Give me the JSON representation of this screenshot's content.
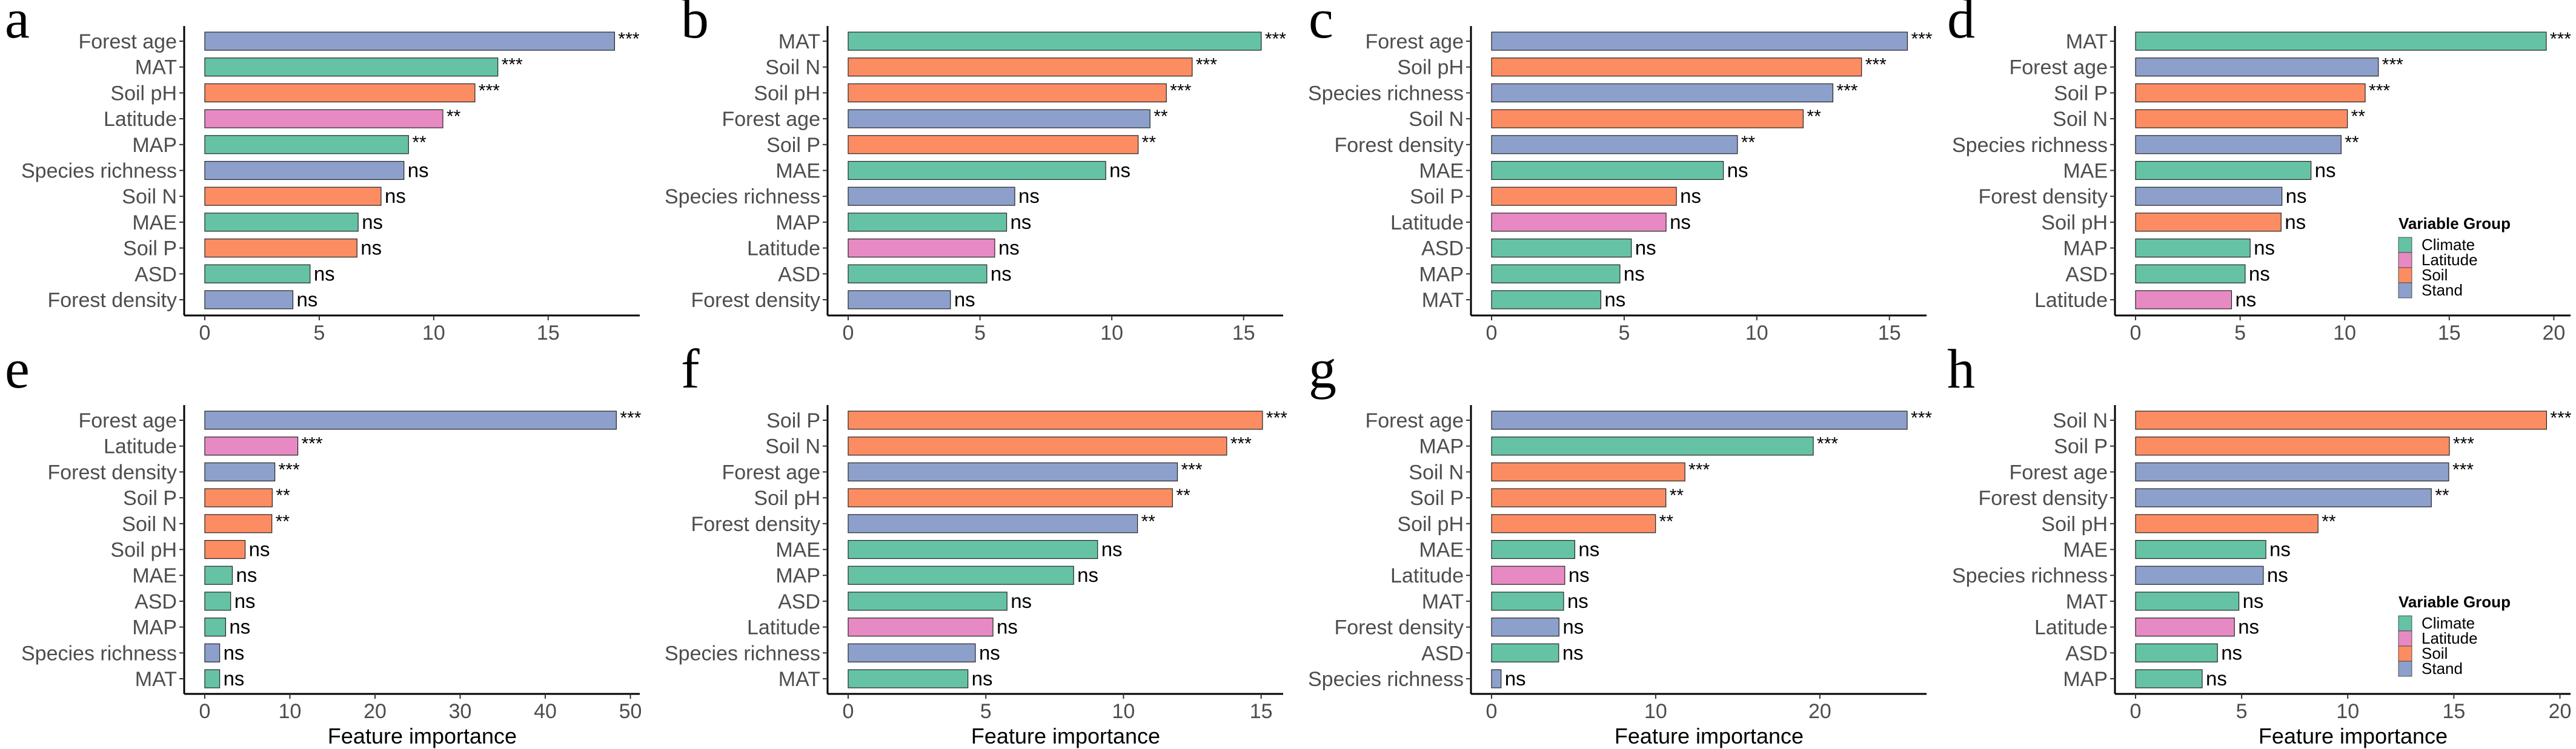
{
  "legend": {
    "title": "Variable Group",
    "items": [
      {
        "label": "Climate",
        "color": "#66c2a5"
      },
      {
        "label": "Latitude",
        "color": "#e78ac3"
      },
      {
        "label": "Soil",
        "color": "#fc8d62"
      },
      {
        "label": "Stand",
        "color": "#8da0cb"
      }
    ]
  },
  "chart_data": [
    {
      "type": "bar",
      "orientation": "horizontal",
      "panel": "a",
      "xlabel": "",
      "xlim": [
        0,
        19
      ],
      "ticks": [
        "0",
        "5",
        "10",
        "15"
      ],
      "legend": false,
      "bars": [
        {
          "variable": "Forest age",
          "group": "Stand",
          "importance": 17.9,
          "significance": "***"
        },
        {
          "variable": "MAT",
          "group": "Climate",
          "importance": 12.8,
          "significance": "***"
        },
        {
          "variable": "Soil pH",
          "group": "Soil",
          "importance": 11.8,
          "significance": "***"
        },
        {
          "variable": "Latitude",
          "group": "Latitude",
          "importance": 10.4,
          "significance": "**"
        },
        {
          "variable": "MAP",
          "group": "Climate",
          "importance": 8.9,
          "significance": "**"
        },
        {
          "variable": "Species richness",
          "group": "Stand",
          "importance": 8.7,
          "significance": "ns"
        },
        {
          "variable": "Soil N",
          "group": "Soil",
          "importance": 7.7,
          "significance": "ns"
        },
        {
          "variable": "MAE",
          "group": "Climate",
          "importance": 6.7,
          "significance": "ns"
        },
        {
          "variable": "Soil P",
          "group": "Soil",
          "importance": 6.65,
          "significance": "ns"
        },
        {
          "variable": "ASD",
          "group": "Climate",
          "importance": 4.6,
          "significance": "ns"
        },
        {
          "variable": "Forest density",
          "group": "Stand",
          "importance": 3.85,
          "significance": "ns"
        }
      ]
    },
    {
      "type": "bar",
      "orientation": "horizontal",
      "panel": "b",
      "xlabel": "",
      "xlim": [
        0,
        16.5
      ],
      "ticks": [
        "0",
        "5",
        "10",
        "15"
      ],
      "legend": false,
      "bars": [
        {
          "variable": "MAT",
          "group": "Climate",
          "importance": 15.67,
          "significance": "***"
        },
        {
          "variable": "Soil N",
          "group": "Soil",
          "importance": 13.05,
          "significance": "***"
        },
        {
          "variable": "Soil pH",
          "group": "Soil",
          "importance": 12.07,
          "significance": "***"
        },
        {
          "variable": "Forest age",
          "group": "Stand",
          "importance": 11.45,
          "significance": "**"
        },
        {
          "variable": "Soil P",
          "group": "Soil",
          "importance": 11.0,
          "significance": "**"
        },
        {
          "variable": "MAE",
          "group": "Climate",
          "importance": 9.77,
          "significance": "ns"
        },
        {
          "variable": "Species richness",
          "group": "Stand",
          "importance": 6.32,
          "significance": "ns"
        },
        {
          "variable": "MAP",
          "group": "Climate",
          "importance": 6.01,
          "significance": "ns"
        },
        {
          "variable": "Latitude",
          "group": "Latitude",
          "importance": 5.56,
          "significance": "ns"
        },
        {
          "variable": "ASD",
          "group": "Climate",
          "importance": 5.26,
          "significance": "ns"
        },
        {
          "variable": "Forest density",
          "group": "Stand",
          "importance": 3.88,
          "significance": "ns"
        }
      ]
    },
    {
      "type": "bar",
      "orientation": "horizontal",
      "panel": "c",
      "xlabel": "",
      "xlim": [
        0,
        16.4
      ],
      "ticks": [
        "0",
        "5",
        "10",
        "15"
      ],
      "legend": false,
      "bars": [
        {
          "variable": "Forest age",
          "group": "Stand",
          "importance": 15.68,
          "significance": "***"
        },
        {
          "variable": "Soil pH",
          "group": "Soil",
          "importance": 13.95,
          "significance": "***"
        },
        {
          "variable": "Species richness",
          "group": "Stand",
          "importance": 12.87,
          "significance": "***"
        },
        {
          "variable": "Soil N",
          "group": "Soil",
          "importance": 11.75,
          "significance": "**"
        },
        {
          "variable": "Forest density",
          "group": "Stand",
          "importance": 9.27,
          "significance": "**"
        },
        {
          "variable": "MAE",
          "group": "Climate",
          "importance": 8.74,
          "significance": "ns"
        },
        {
          "variable": "Soil P",
          "group": "Soil",
          "importance": 6.97,
          "significance": "ns"
        },
        {
          "variable": "Latitude",
          "group": "Latitude",
          "importance": 6.58,
          "significance": "ns"
        },
        {
          "variable": "ASD",
          "group": "Climate",
          "importance": 5.27,
          "significance": "ns"
        },
        {
          "variable": "MAP",
          "group": "Climate",
          "importance": 4.84,
          "significance": "ns"
        },
        {
          "variable": "MAT",
          "group": "Climate",
          "importance": 4.12,
          "significance": "ns"
        }
      ]
    },
    {
      "type": "bar",
      "orientation": "horizontal",
      "panel": "d",
      "xlabel": "",
      "xlim": [
        0,
        20.8
      ],
      "ticks": [
        "0",
        "5",
        "10",
        "15",
        "20"
      ],
      "legend": true,
      "bars": [
        {
          "variable": "MAT",
          "group": "Climate",
          "importance": 19.64,
          "significance": "***"
        },
        {
          "variable": "Forest age",
          "group": "Stand",
          "importance": 11.61,
          "significance": "***"
        },
        {
          "variable": "Soil P",
          "group": "Soil",
          "importance": 10.98,
          "significance": "***"
        },
        {
          "variable": "Soil N",
          "group": "Soil",
          "importance": 10.13,
          "significance": "**"
        },
        {
          "variable": "Species richness",
          "group": "Stand",
          "importance": 9.83,
          "significance": "**"
        },
        {
          "variable": "MAE",
          "group": "Climate",
          "importance": 8.39,
          "significance": "ns"
        },
        {
          "variable": "Forest density",
          "group": "Stand",
          "importance": 7.0,
          "significance": "ns"
        },
        {
          "variable": "Soil pH",
          "group": "Soil",
          "importance": 6.96,
          "significance": "ns"
        },
        {
          "variable": "MAP",
          "group": "Climate",
          "importance": 5.48,
          "significance": "ns"
        },
        {
          "variable": "ASD",
          "group": "Climate",
          "importance": 5.24,
          "significance": "ns"
        },
        {
          "variable": "Latitude",
          "group": "Latitude",
          "importance": 4.59,
          "significance": "ns"
        }
      ]
    },
    {
      "type": "bar",
      "orientation": "horizontal",
      "panel": "e",
      "xlabel": "Feature importance",
      "xlim": [
        0,
        51.1
      ],
      "ticks": [
        "0",
        "10",
        "20",
        "30",
        "40",
        "50"
      ],
      "legend": false,
      "bars": [
        {
          "variable": "Forest age",
          "group": "Stand",
          "importance": 48.35,
          "significance": "***"
        },
        {
          "variable": "Latitude",
          "group": "Latitude",
          "importance": 10.93,
          "significance": "***"
        },
        {
          "variable": "Forest density",
          "group": "Stand",
          "importance": 8.23,
          "significance": "***"
        },
        {
          "variable": "Soil P",
          "group": "Soil",
          "importance": 7.93,
          "significance": "**"
        },
        {
          "variable": "Soil N",
          "group": "Soil",
          "importance": 7.88,
          "significance": "**"
        },
        {
          "variable": "Soil pH",
          "group": "Soil",
          "importance": 4.74,
          "significance": "ns"
        },
        {
          "variable": "MAE",
          "group": "Climate",
          "importance": 3.24,
          "significance": "ns"
        },
        {
          "variable": "ASD",
          "group": "Climate",
          "importance": 3.04,
          "significance": "ns"
        },
        {
          "variable": "MAP",
          "group": "Climate",
          "importance": 2.45,
          "significance": "ns"
        },
        {
          "variable": "Species richness",
          "group": "Stand",
          "importance": 1.75,
          "significance": "ns"
        },
        {
          "variable": "MAT",
          "group": "Climate",
          "importance": 1.75,
          "significance": "ns"
        }
      ]
    },
    {
      "type": "bar",
      "orientation": "horizontal",
      "panel": "f",
      "xlabel": "Feature importance",
      "xlim": [
        0,
        15.8
      ],
      "ticks": [
        "0",
        "5",
        "10",
        "15"
      ],
      "legend": false,
      "bars": [
        {
          "variable": "Soil P",
          "group": "Soil",
          "importance": 15.05,
          "significance": "***"
        },
        {
          "variable": "Soil N",
          "group": "Soil",
          "importance": 13.75,
          "significance": "***"
        },
        {
          "variable": "Forest age",
          "group": "Stand",
          "importance": 11.96,
          "significance": "***"
        },
        {
          "variable": "Soil pH",
          "group": "Soil",
          "importance": 11.78,
          "significance": "**"
        },
        {
          "variable": "Forest density",
          "group": "Stand",
          "importance": 10.51,
          "significance": "**"
        },
        {
          "variable": "MAE",
          "group": "Climate",
          "importance": 9.06,
          "significance": "ns"
        },
        {
          "variable": "MAP",
          "group": "Climate",
          "importance": 8.19,
          "significance": "ns"
        },
        {
          "variable": "ASD",
          "group": "Climate",
          "importance": 5.77,
          "significance": "ns"
        },
        {
          "variable": "Latitude",
          "group": "Latitude",
          "importance": 5.26,
          "significance": "ns"
        },
        {
          "variable": "Species richness",
          "group": "Stand",
          "importance": 4.62,
          "significance": "ns"
        },
        {
          "variable": "MAT",
          "group": "Climate",
          "importance": 4.35,
          "significance": "ns"
        }
      ]
    },
    {
      "type": "bar",
      "orientation": "horizontal",
      "panel": "g",
      "xlabel": "Feature importance",
      "xlim": [
        0,
        26.5
      ],
      "ticks": [
        "0",
        "10",
        "20"
      ],
      "legend": false,
      "bars": [
        {
          "variable": "Forest age",
          "group": "Stand",
          "importance": 25.32,
          "significance": "***"
        },
        {
          "variable": "MAP",
          "group": "Climate",
          "importance": 19.6,
          "significance": "***"
        },
        {
          "variable": "Soil N",
          "group": "Soil",
          "importance": 11.78,
          "significance": "***"
        },
        {
          "variable": "Soil P",
          "group": "Soil",
          "importance": 10.62,
          "significance": "**"
        },
        {
          "variable": "Soil pH",
          "group": "Soil",
          "importance": 9.99,
          "significance": "**"
        },
        {
          "variable": "MAE",
          "group": "Climate",
          "importance": 5.07,
          "significance": "ns"
        },
        {
          "variable": "Latitude",
          "group": "Latitude",
          "importance": 4.46,
          "significance": "ns"
        },
        {
          "variable": "MAT",
          "group": "Climate",
          "importance": 4.39,
          "significance": "ns"
        },
        {
          "variable": "Forest density",
          "group": "Stand",
          "importance": 4.11,
          "significance": "ns"
        },
        {
          "variable": "ASD",
          "group": "Climate",
          "importance": 4.09,
          "significance": "ns"
        },
        {
          "variable": "Species richness",
          "group": "Stand",
          "importance": 0.58,
          "significance": "ns"
        }
      ]
    },
    {
      "type": "bar",
      "orientation": "horizontal",
      "panel": "h",
      "xlabel": "Feature importance",
      "xlim": [
        0,
        20.5
      ],
      "ticks": [
        "0",
        "5",
        "10",
        "15",
        "20"
      ],
      "legend": true,
      "bars": [
        {
          "variable": "Soil N",
          "group": "Soil",
          "importance": 19.37,
          "significance": "***"
        },
        {
          "variable": "Soil P",
          "group": "Soil",
          "importance": 14.79,
          "significance": "***"
        },
        {
          "variable": "Forest age",
          "group": "Stand",
          "importance": 14.76,
          "significance": "***"
        },
        {
          "variable": "Forest density",
          "group": "Stand",
          "importance": 13.94,
          "significance": "**"
        },
        {
          "variable": "Soil pH",
          "group": "Soil",
          "importance": 8.6,
          "significance": "**"
        },
        {
          "variable": "MAE",
          "group": "Climate",
          "importance": 6.14,
          "significance": "ns"
        },
        {
          "variable": "Species richness",
          "group": "Stand",
          "importance": 6.02,
          "significance": "ns"
        },
        {
          "variable": "MAT",
          "group": "Climate",
          "importance": 4.87,
          "significance": "ns"
        },
        {
          "variable": "Latitude",
          "group": "Latitude",
          "importance": 4.66,
          "significance": "ns"
        },
        {
          "variable": "ASD",
          "group": "Climate",
          "importance": 3.86,
          "significance": "ns"
        },
        {
          "variable": "MAP",
          "group": "Climate",
          "importance": 3.14,
          "significance": "ns"
        }
      ]
    }
  ]
}
